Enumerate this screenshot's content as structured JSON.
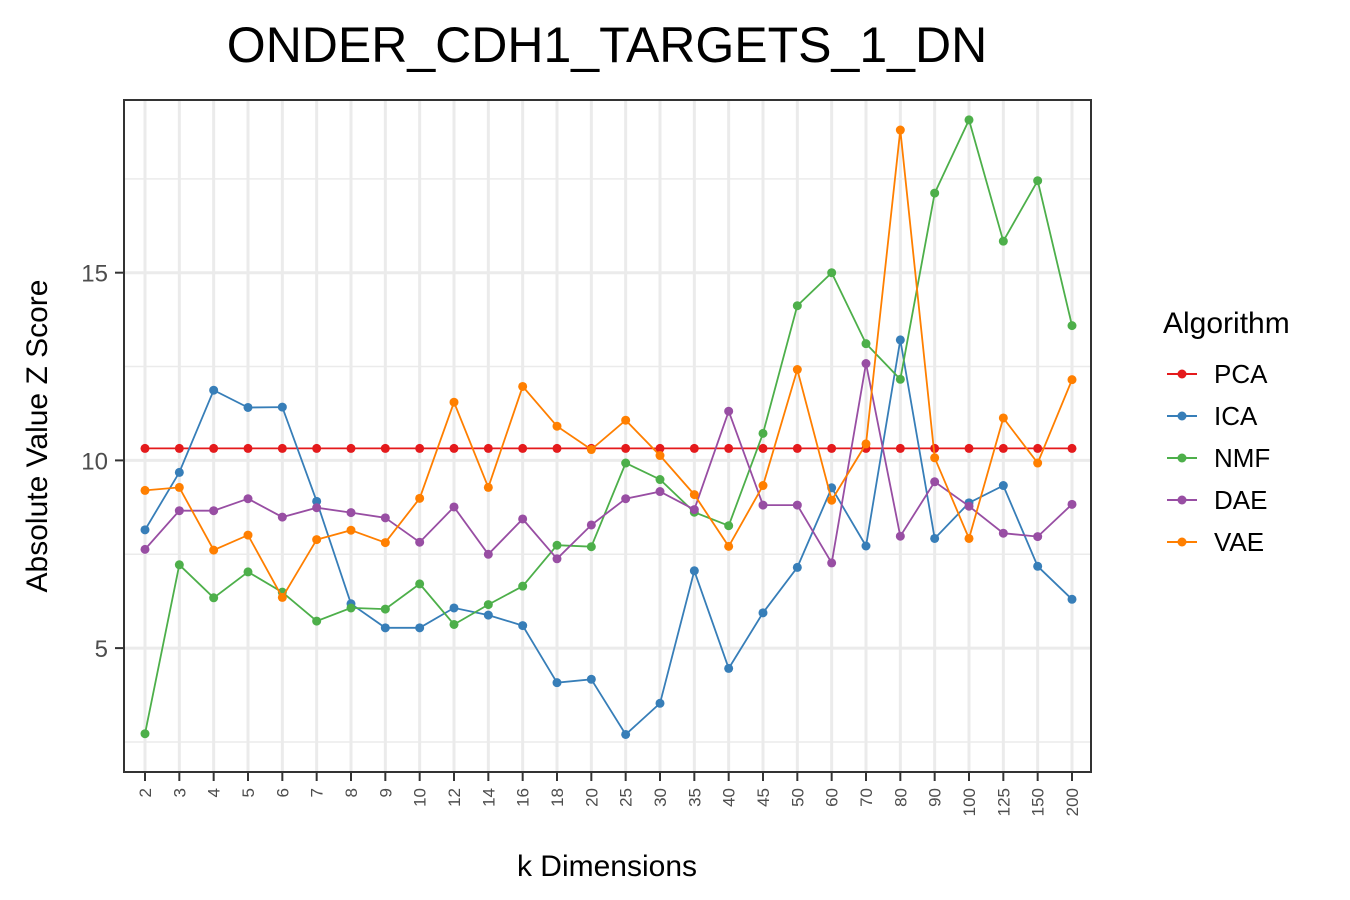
{
  "chart_data": {
    "type": "line",
    "title": "ONDER_CDH1_TARGETS_1_DN",
    "xlabel": "k Dimensions",
    "ylabel": "Absolute Value Z Score",
    "categories": [
      "2",
      "3",
      "4",
      "5",
      "6",
      "7",
      "8",
      "9",
      "10",
      "12",
      "14",
      "16",
      "18",
      "20",
      "25",
      "30",
      "35",
      "40",
      "45",
      "50",
      "60",
      "70",
      "80",
      "90",
      "100",
      "125",
      "150",
      "200"
    ],
    "yticks": [
      5,
      10,
      15
    ],
    "ylim": [
      1.7,
      19.6
    ],
    "grid": true,
    "legend": {
      "title": "Algorithm",
      "position": "right"
    },
    "series": [
      {
        "name": "PCA",
        "color": "#e41a1c",
        "values": [
          10.32,
          10.32,
          10.32,
          10.32,
          10.32,
          10.32,
          10.32,
          10.32,
          10.32,
          10.32,
          10.32,
          10.32,
          10.32,
          10.32,
          10.32,
          10.32,
          10.32,
          10.32,
          10.32,
          10.32,
          10.32,
          10.32,
          10.32,
          10.32,
          10.32,
          10.32,
          10.32,
          10.32
        ]
      },
      {
        "name": "ICA",
        "color": "#377eb8",
        "values": [
          8.15,
          9.68,
          11.87,
          11.41,
          11.42,
          8.91,
          6.18,
          5.54,
          5.54,
          6.07,
          5.88,
          5.6,
          4.08,
          4.17,
          2.7,
          3.53,
          7.06,
          4.46,
          5.94,
          7.15,
          9.27,
          7.72,
          13.21,
          7.92,
          8.87,
          9.33,
          7.18,
          6.3
        ]
      },
      {
        "name": "NMF",
        "color": "#4daf4a",
        "values": [
          2.72,
          7.22,
          6.34,
          7.03,
          6.49,
          5.72,
          6.07,
          6.04,
          6.71,
          5.63,
          6.16,
          6.65,
          7.74,
          7.7,
          9.93,
          9.49,
          8.62,
          8.26,
          10.72,
          14.12,
          15.0,
          13.11,
          12.16,
          17.12,
          19.07,
          15.84,
          17.45,
          13.59
        ]
      },
      {
        "name": "DAE",
        "color": "#984ea3",
        "values": [
          7.63,
          8.66,
          8.66,
          8.98,
          8.49,
          8.74,
          8.61,
          8.47,
          7.82,
          8.76,
          7.5,
          8.44,
          7.38,
          8.28,
          8.98,
          9.17,
          8.69,
          11.31,
          8.81,
          8.81,
          7.27,
          12.58,
          7.98,
          9.43,
          8.78,
          8.06,
          7.97,
          8.83
        ]
      },
      {
        "name": "VAE",
        "color": "#ff7f00",
        "values": [
          9.2,
          9.28,
          7.61,
          8.01,
          6.35,
          7.89,
          8.14,
          7.81,
          8.99,
          11.55,
          9.28,
          11.97,
          10.91,
          10.29,
          11.07,
          10.13,
          9.09,
          7.71,
          9.33,
          12.42,
          8.94,
          10.44,
          18.8,
          10.07,
          7.92,
          11.13,
          9.93,
          12.15
        ]
      }
    ]
  }
}
